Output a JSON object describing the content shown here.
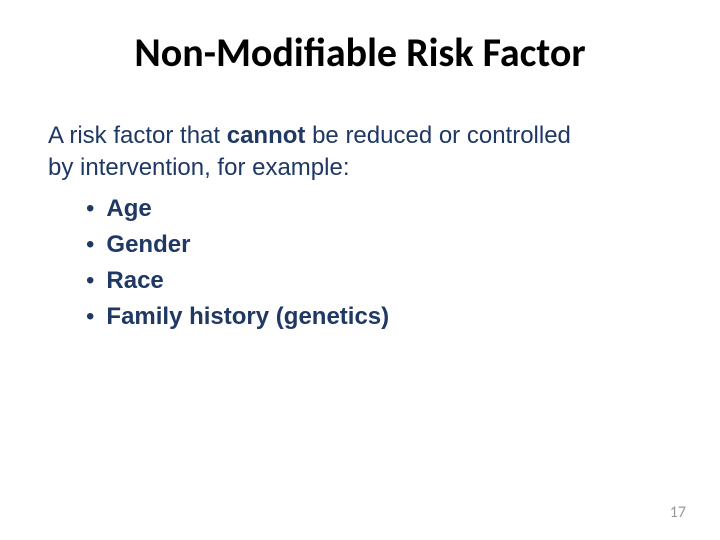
{
  "title": "Non-Modifiable Risk Factor",
  "intro": {
    "line1_before": "A risk factor that ",
    "line1_cannot": "cannot",
    "line1_after": " be reduced or controlled",
    "line2": "by intervention, for example:"
  },
  "bullets": [
    {
      "label": "Age"
    },
    {
      "label": "Gender"
    },
    {
      "label": "Race"
    },
    {
      "label": "Family history (genetics)"
    }
  ],
  "page_number": "17",
  "colors": {
    "title": "#000000",
    "body_text": "#1f3864",
    "pagenum": "#999999",
    "background": "#ffffff"
  },
  "fonts": {
    "title_size_pt": 40,
    "body_size_pt": 24,
    "pagenum_size_pt": 16,
    "title_weight": 700,
    "bullet_weight": 700
  }
}
